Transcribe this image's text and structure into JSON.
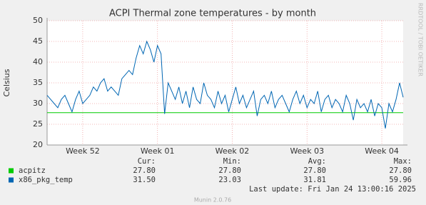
{
  "chart_data": {
    "type": "line",
    "title": "ACPI Thermal zone temperatures - by month",
    "y_label": "Celsius",
    "x": [
      0,
      8,
      16,
      24,
      32,
      40,
      48,
      56,
      64,
      72,
      80,
      88,
      96,
      104,
      112,
      120,
      128,
      136,
      144,
      152,
      160,
      168,
      176,
      184,
      192,
      200,
      208,
      216,
      224,
      232,
      240,
      248,
      256,
      264,
      272,
      280,
      288,
      296,
      304,
      312,
      320,
      328,
      336,
      344,
      352,
      360,
      368,
      376,
      384,
      392,
      400,
      408,
      416,
      424,
      432,
      440,
      448,
      456,
      464,
      472,
      480,
      488,
      496,
      504,
      512,
      520,
      528,
      536,
      544,
      552,
      560,
      568,
      576,
      584,
      592,
      600,
      608,
      616,
      624,
      632,
      640,
      648,
      656,
      664,
      672,
      680,
      688,
      696,
      704,
      712,
      720,
      728,
      736,
      744,
      752,
      760,
      768,
      776,
      784,
      792,
      800
    ],
    "xlim": [
      0,
      800
    ],
    "xticks": [
      {
        "value": 80,
        "label": "Week 52"
      },
      {
        "value": 248,
        "label": "Week 01"
      },
      {
        "value": 416,
        "label": "Week 02"
      },
      {
        "value": 584,
        "label": "Week 03"
      },
      {
        "value": 752,
        "label": "Week 04"
      }
    ],
    "ylim": [
      20,
      50
    ],
    "yticks": [
      20,
      25,
      30,
      35,
      40,
      45,
      50
    ],
    "grid": true,
    "stat_headers": [
      "Cur:",
      "Min:",
      "Avg:",
      "Max:"
    ],
    "series": [
      {
        "name": "acpitz",
        "color": "#00cc00",
        "stats": [
          "27.80",
          "27.80",
          "27.80",
          "27.80"
        ],
        "values": [
          27.8,
          27.8,
          27.8,
          27.8,
          27.8,
          27.8,
          27.8,
          27.8,
          27.8,
          27.8,
          27.8,
          27.8,
          27.8,
          27.8,
          27.8,
          27.8,
          27.8,
          27.8,
          27.8,
          27.8,
          27.8,
          27.8,
          27.8,
          27.8,
          27.8,
          27.8,
          27.8,
          27.8,
          27.8,
          27.8,
          27.8,
          27.8,
          27.8,
          27.8,
          27.8,
          27.8,
          27.8,
          27.8,
          27.8,
          27.8,
          27.8,
          27.8,
          27.8,
          27.8,
          27.8,
          27.8,
          27.8,
          27.8,
          27.8,
          27.8,
          27.8,
          27.8,
          27.8,
          27.8,
          27.8,
          27.8,
          27.8,
          27.8,
          27.8,
          27.8,
          27.8,
          27.8,
          27.8,
          27.8,
          27.8,
          27.8,
          27.8,
          27.8,
          27.8,
          27.8,
          27.8,
          27.8,
          27.8,
          27.8,
          27.8,
          27.8,
          27.8,
          27.8,
          27.8,
          27.8,
          27.8,
          27.8,
          27.8,
          27.8,
          27.8,
          27.8,
          27.8,
          27.8,
          27.8,
          27.8,
          27.8,
          27.8,
          27.8,
          27.8,
          27.8,
          27.8,
          27.8,
          27.8,
          27.8,
          27.8,
          27.8
        ]
      },
      {
        "name": "x86_pkg_temp",
        "color": "#0066b3",
        "stats": [
          "31.50",
          "23.03",
          "31.81",
          "59.96"
        ],
        "values": [
          32,
          31,
          30,
          29,
          31,
          32,
          30,
          28,
          31,
          33,
          30,
          31,
          32,
          34,
          33,
          35,
          36,
          33,
          34,
          33,
          32,
          36,
          37,
          38,
          37,
          41,
          44,
          42,
          45,
          43,
          40,
          44,
          42,
          27.5,
          35,
          33,
          31,
          34,
          30,
          33,
          29,
          34,
          31,
          30,
          35,
          32,
          31,
          29,
          33,
          30,
          32,
          28,
          31,
          34,
          30,
          32,
          29,
          31,
          33,
          27,
          31,
          32,
          30,
          33,
          29,
          31,
          32,
          30,
          28,
          31,
          33,
          30,
          32,
          29,
          31,
          30,
          33,
          28,
          31,
          32,
          29,
          31,
          30,
          28,
          32,
          30,
          26,
          31,
          29,
          30,
          28,
          31,
          27,
          30,
          29,
          24,
          30,
          28,
          31,
          35,
          31.5
        ]
      }
    ],
    "last_update": "Last update: Fri Jan 24 13:00:16 2025",
    "side_text": "RRDTOOL / TOBI OETIKER",
    "footer": "Munin 2.0.76"
  }
}
